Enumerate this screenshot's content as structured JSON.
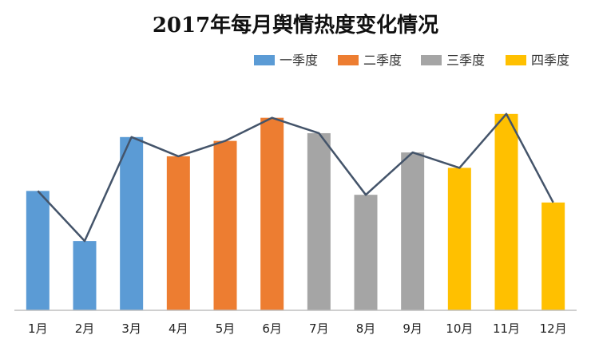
{
  "chart_data": {
    "type": "bar",
    "title": "2017年每月舆情热度变化情况",
    "categories": [
      "1月",
      "2月",
      "3月",
      "4月",
      "5月",
      "6月",
      "7月",
      "8月",
      "9月",
      "10月",
      "11月",
      "12月"
    ],
    "values": [
      31,
      18,
      45,
      40,
      44,
      50,
      46,
      30,
      41,
      37,
      51,
      28
    ],
    "line_values": [
      31,
      18,
      45,
      40,
      44,
      50,
      46,
      30,
      41,
      37,
      51,
      28
    ],
    "category_series": [
      0,
      0,
      0,
      1,
      1,
      1,
      2,
      2,
      2,
      3,
      3,
      3
    ],
    "series": [
      {
        "name": "一季度",
        "color": "#5B9BD5"
      },
      {
        "name": "二季度",
        "color": "#ED7D31"
      },
      {
        "name": "三季度",
        "color": "#A5A5A5"
      },
      {
        "name": "四季度",
        "color": "#FFC000"
      }
    ],
    "line_color": "#44546A",
    "ylim": [
      0,
      52
    ],
    "grid": false,
    "legend_position": "top-right",
    "xlabel": "",
    "ylabel": ""
  }
}
